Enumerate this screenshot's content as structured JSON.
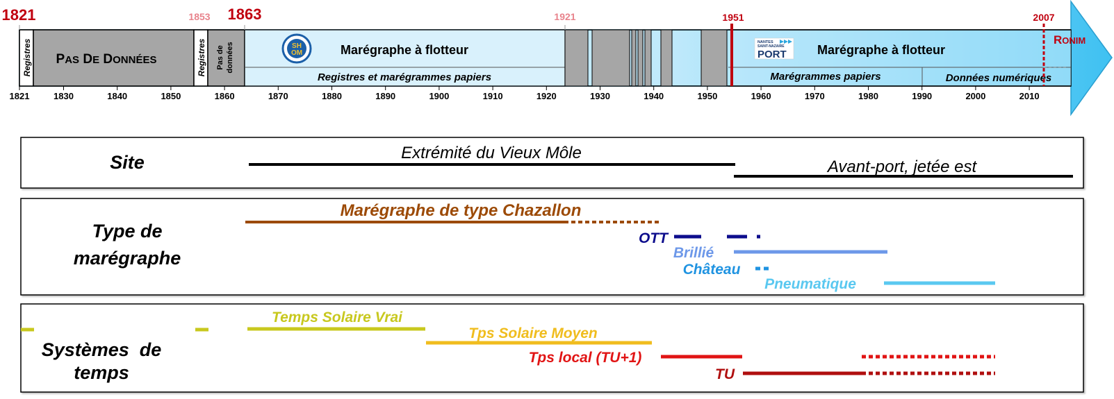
{
  "timeline": {
    "key_years": {
      "y1821": "1821",
      "y1853": "1853",
      "y1863": "1863",
      "y1921": "1921",
      "y1951": "1951",
      "y2007": "2007"
    },
    "ronim": "Ronim",
    "segments": {
      "registres_1": "Registres",
      "pas_de_donnees_big": "Pas de données",
      "registres_2": "Registres",
      "pas_de_donnees_small_1": "Pas de",
      "pas_de_donnees_small_2": "données",
      "maregraphe_flotteur_1": "Marégraphe à flotteur",
      "registres_maregrammes": "Registres  et  marégrammes  papiers",
      "maregraphe_flotteur_2": "Marégraphe à flotteur",
      "maregrammes_papiers": "Marégrammes papiers",
      "donnees_numeriques": "Données numériques"
    },
    "logos": {
      "shom_top": "SH",
      "shom_bottom": "OM",
      "port_line1": "NANTES",
      "port_line2": "SAINT-NAZAIRE",
      "port_word": "PORT"
    },
    "axis_ticks": [
      "1821",
      "1830",
      "1840",
      "1850",
      "1860",
      "1870",
      "1880",
      "1890",
      "1900",
      "1910",
      "1920",
      "1930",
      "1940",
      "1950",
      "1960",
      "1970",
      "1980",
      "1990",
      "2000",
      "2010"
    ]
  },
  "panels": {
    "site": {
      "label": "Site",
      "line1": "Extrémité du Vieux Môle",
      "line2": "Avant-port, jetée est"
    },
    "type": {
      "label_1": "Type de",
      "label_2": "marégraphe",
      "chazallon": "Marégraphe de type Chazallon",
      "ott": "OTT",
      "brillie": "Brillié",
      "chateau": "Château",
      "pneumatique": "Pneumatique"
    },
    "temps": {
      "label_1": "Systèmes  de",
      "label_2": "temps",
      "solaire_vrai": "Temps Solaire Vrai",
      "solaire_moyen": "Tps Solaire Moyen",
      "local": "Tps local (TU+1)",
      "tu": "TU"
    }
  },
  "colors": {
    "red": "#c0000f",
    "pink": "#e8838c",
    "grey": "#a6a6a6",
    "light_blue": "#d9f1fc",
    "arrow_blue": "#3fc1f2",
    "black": "#000000",
    "brown": "#9c4a06",
    "navy": "#0d0d8c",
    "periwinkle": "#6d98e9",
    "azure": "#1f93e1",
    "sky": "#5ac8f0",
    "olive": "#c8c81e",
    "gold": "#f0bd1e",
    "bright_red": "#e11414",
    "dark_red": "#b00f0f"
  }
}
